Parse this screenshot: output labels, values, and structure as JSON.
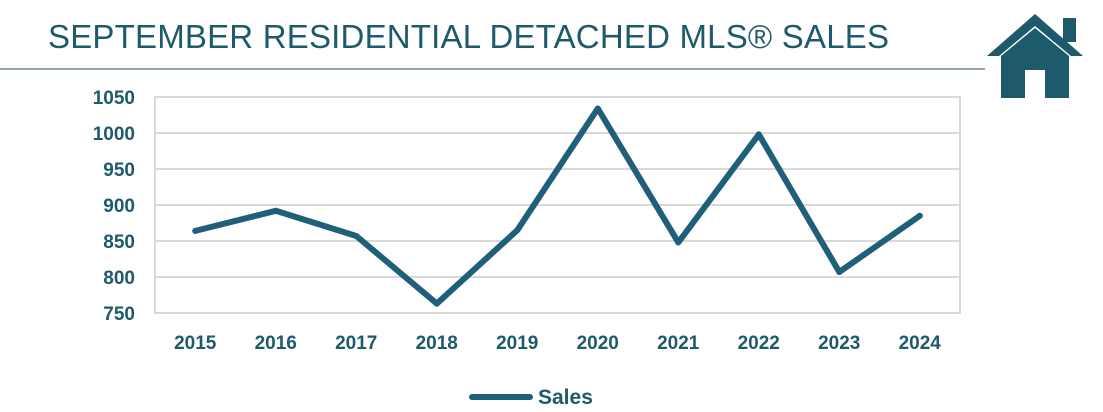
{
  "header": {
    "title": "SEPTEMBER RESIDENTIAL DETACHED MLS® SALES",
    "icon": "house-icon"
  },
  "colors": {
    "accent": "#1d5a6b",
    "line": "#1f5f7a",
    "grid": "#d9d9d9"
  },
  "chart_data": {
    "type": "line",
    "title": "SEPTEMBER RESIDENTIAL DETACHED MLS® SALES",
    "xlabel": "",
    "ylabel": "",
    "categories": [
      "2015",
      "2016",
      "2017",
      "2018",
      "2019",
      "2020",
      "2021",
      "2022",
      "2023",
      "2024"
    ],
    "series": [
      {
        "name": "Sales",
        "values": [
          864,
          892,
          857,
          763,
          865,
          1034,
          848,
          998,
          807,
          885
        ]
      }
    ],
    "ylim": [
      750,
      1050
    ],
    "yticks": [
      750,
      800,
      850,
      900,
      950,
      1000,
      1050
    ],
    "grid": true,
    "legend": "bottom-center"
  }
}
